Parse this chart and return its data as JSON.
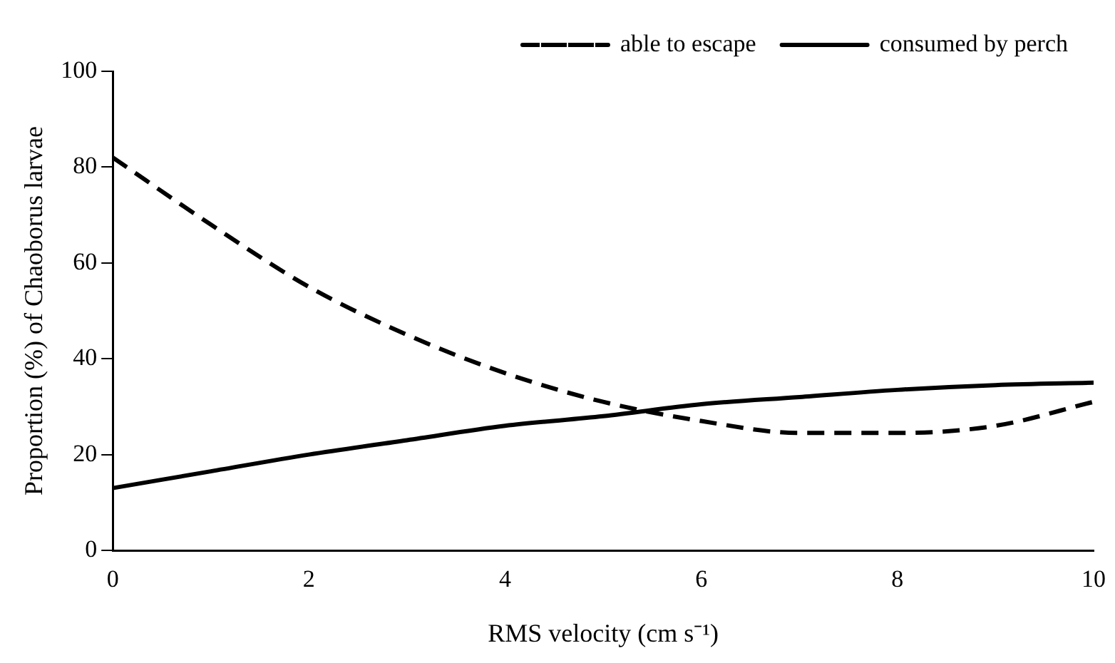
{
  "chart_data": {
    "type": "line",
    "xlabel": "RMS velocity (cm s⁻¹)",
    "ylabel": "Proportion (%) of Chaoborus larvae",
    "x": [
      0,
      1,
      2,
      3,
      4,
      5,
      6,
      7,
      8,
      9,
      10
    ],
    "series": [
      {
        "name": "able to escape",
        "color": "#000000",
        "line_style": "dashed",
        "values": [
          82,
          68,
          55,
          45,
          37,
          31,
          27,
          24.5,
          24.5,
          26,
          31
        ]
      },
      {
        "name": "consumed by perch",
        "color": "#000000",
        "line_style": "solid",
        "values": [
          13,
          16.5,
          20,
          23,
          26,
          28,
          30.5,
          32,
          33.5,
          34.5,
          35
        ]
      }
    ],
    "xlim": [
      0,
      10
    ],
    "xticks": [
      0,
      2,
      4,
      6,
      8,
      10
    ],
    "ylim": [
      0,
      100
    ],
    "yticks": [
      0,
      20,
      40,
      60,
      80,
      100
    ],
    "grid": false,
    "legend": "top",
    "marker": "none"
  }
}
